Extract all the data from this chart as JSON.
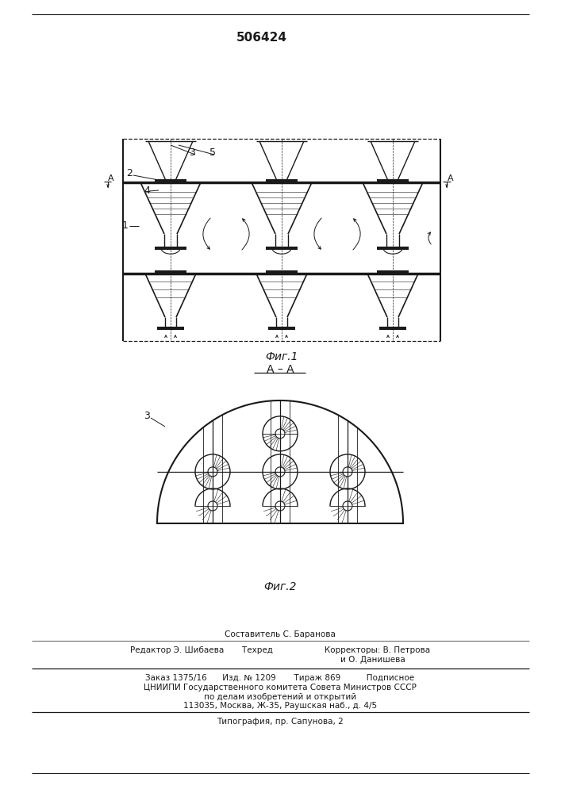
{
  "title": "506424",
  "fig1_label": "Фиг.1",
  "fig2_label": "Фиг.2",
  "section_label": "A – A",
  "bg_color": "#ffffff",
  "line_color": "#1a1a1a",
  "text_color": "#1a1a1a",
  "footer_lines": [
    "Составитель С. Баранова",
    "Редактор Э. Шибаева       Техред                    Корректоры: В. Петрова",
    "                                                                        и О. Данишева",
    "Заказ 1375/16      Изд. № 1209       Тираж 869          Подписное",
    "ЦНИИПИ Государственного комитета Совета Министров СССР",
    "по делам изобретений и открытий",
    "113035, Москва, Ж-35, Раушская наб., д. 4/5",
    "Типография, пр. Сапунова, 2"
  ]
}
